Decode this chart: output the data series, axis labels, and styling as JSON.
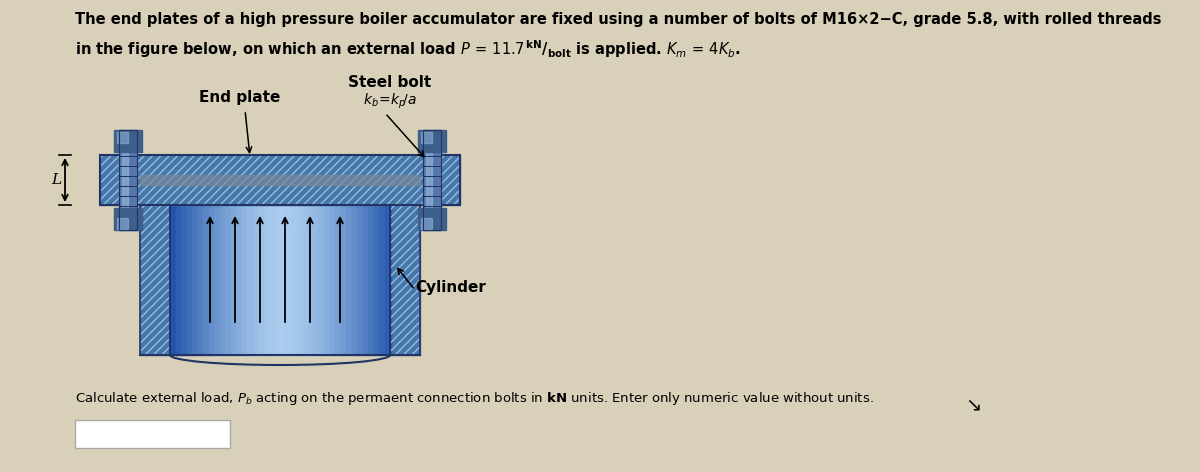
{
  "bg_color": "#d8d0b8",
  "title_line1": "The end plates of a high pressure boiler accumulator are fixed using a number of bolts of M16×2−C, grade 5.8, with rolled threads",
  "title_line2_plain": "in the figure below, on which an external load ",
  "title_line2_math": "P",
  "title_line2_mid": " = 11.7 ",
  "title_line2_kN": "kN",
  "title_line2_per": "/",
  "title_line2_bolt": "bolt",
  "title_line2_rest": " is applied. K",
  "title_line2_m": "m",
  "title_line2_eq": " = 4K",
  "title_line2_b": "b",
  "title_line2_dot": ".",
  "label_steel_bolt": "Steel bolt",
  "label_kb_formula": "k_b=k_p/a",
  "label_end_plate": "End plate",
  "label_cylinder": "Cylinder",
  "question_text": "Calculate external load, P",
  "question_sub": "b",
  "question_rest": " acting on the permaent connection bolts in ",
  "question_kN": "kN",
  "question_tail": " units. Enter only numeric value without units.",
  "plate_hatch_color": "#6688bb",
  "plate_bg_color": "#4477aa",
  "cylinder_dark": "#2255aa",
  "cylinder_mid": "#4488cc",
  "cylinder_light": "#aaccee",
  "bolt_color": "#5577aa",
  "bolt_highlight": "#99bbdd",
  "title_fontsize": 10.5,
  "label_fontsize": 9.5,
  "question_fontsize": 9.5
}
